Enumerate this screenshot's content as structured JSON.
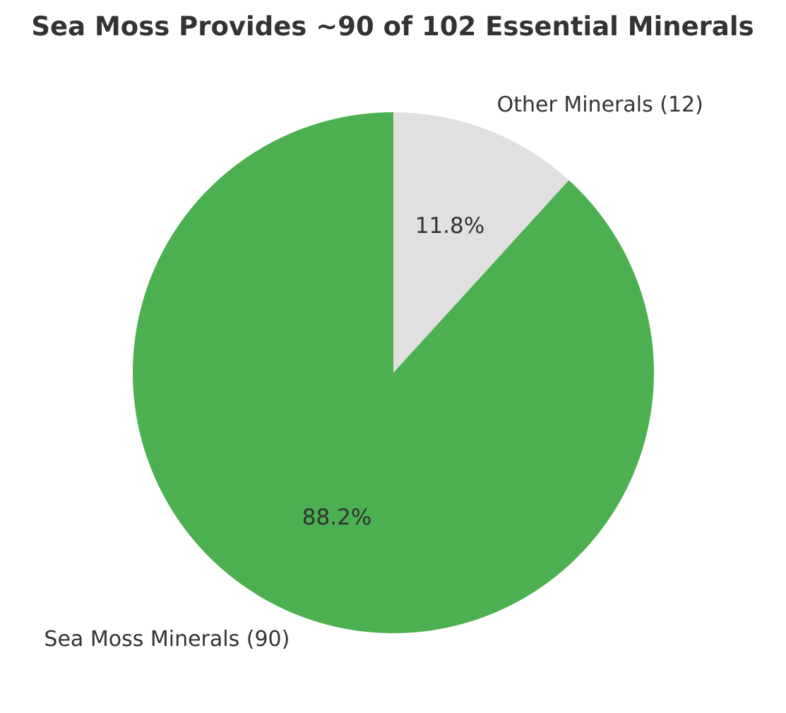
{
  "chart_data": {
    "type": "pie",
    "title": "Sea Moss Provides ~90 of 102 Essential Minerals",
    "slices": [
      {
        "label": "Other Minerals (12)",
        "value": 12,
        "percent_label": "11.8%",
        "color": "#e0e0e0"
      },
      {
        "label": "Sea Moss Minerals (90)",
        "value": 90,
        "percent_label": "88.2%",
        "color": "#4caf50"
      }
    ],
    "start_angle_deg": 90,
    "direction": "clockwise",
    "legend": "none"
  }
}
